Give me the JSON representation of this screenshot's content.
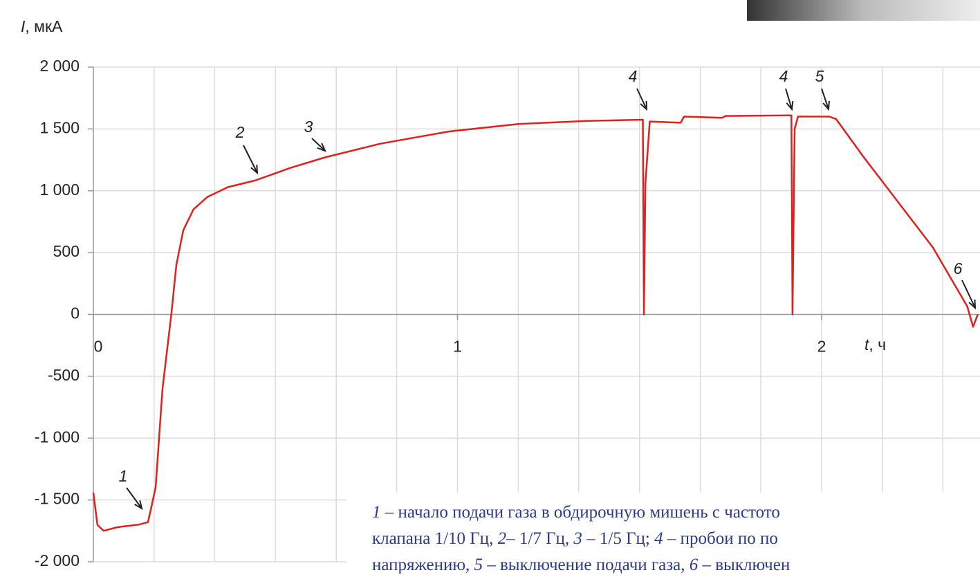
{
  "chart_data": {
    "type": "line",
    "ylabel": "мкА",
    "ylabel_symbol": "I",
    "xlabel": "ч",
    "xlabel_symbol": "t",
    "x": [
      0,
      0.011,
      0.028,
      0.066,
      0.123,
      0.15,
      0.171,
      0.19,
      0.214,
      0.228,
      0.247,
      0.275,
      0.313,
      0.37,
      0.446,
      0.541,
      0.636,
      0.787,
      0.977,
      1.167,
      1.357,
      1.509,
      1.512,
      1.516,
      1.528,
      1.613,
      1.622,
      1.727,
      1.736,
      1.917,
      1.92,
      1.926,
      1.935,
      2.021,
      2.04,
      2.116,
      2.211,
      2.306,
      2.4,
      2.416,
      2.429
    ],
    "series": [
      {
        "color": "#e0201c",
        "values": [
          -1440,
          -1700,
          -1750,
          -1720,
          -1700,
          -1680,
          -1400,
          -600,
          0,
          400,
          680,
          850,
          950,
          1030,
          1085,
          1185,
          1270,
          1380,
          1480,
          1540,
          1565,
          1575,
          0,
          1060,
          1560,
          1550,
          1600,
          1590,
          1605,
          1610,
          0,
          1500,
          1600,
          1600,
          1580,
          1270,
          905,
          540,
          65,
          -100,
          0
        ]
      }
    ],
    "xlim": [
      0,
      2.435
    ],
    "ylim": [
      -2000,
      2000
    ],
    "xticks": [
      0,
      1,
      2
    ],
    "xgrid": [
      0.167,
      0.333,
      0.5,
      0.667,
      0.833,
      1,
      1.167,
      1.333,
      1.5,
      1.667,
      1.833,
      2,
      2.167,
      2.333
    ],
    "yticks": [
      {
        "value": -2000,
        "label": "-2 000"
      },
      {
        "value": -1500,
        "label": "-1 500"
      },
      {
        "value": -1000,
        "label": "-1 000"
      },
      -500,
      0,
      500,
      {
        "value": 1000,
        "label": "1 000"
      },
      {
        "value": 1500,
        "label": "1 500"
      },
      {
        "value": 2000,
        "label": "2 000"
      }
    ],
    "grid": true,
    "annotations": [
      {
        "text": "1"
      },
      {
        "text": "2"
      },
      {
        "text": "3"
      },
      {
        "text": "4"
      },
      {
        "text": "4"
      },
      {
        "text": "5"
      },
      {
        "text": "6"
      }
    ],
    "caption": [
      [
        {
          "t": "1",
          "i": true
        },
        {
          "t": " – начало подачи газа в обдирочную мишень с частото"
        }
      ],
      [
        {
          "t": "клапана 1/10 Гц, "
        },
        {
          "t": "2",
          "i": true
        },
        {
          "t": "– 1/7 Гц, "
        },
        {
          "t": "3",
          "i": true
        },
        {
          "t": " – 1/5 Гц; "
        },
        {
          "t": "4",
          "i": true
        },
        {
          "t": " – пробои по по"
        }
      ],
      [
        {
          "t": "напряжению, "
        },
        {
          "t": "5",
          "i": true
        },
        {
          "t": " – выключение подачи газа, "
        },
        {
          "t": "6",
          "i": true
        },
        {
          "t": " – выключен"
        }
      ]
    ]
  }
}
